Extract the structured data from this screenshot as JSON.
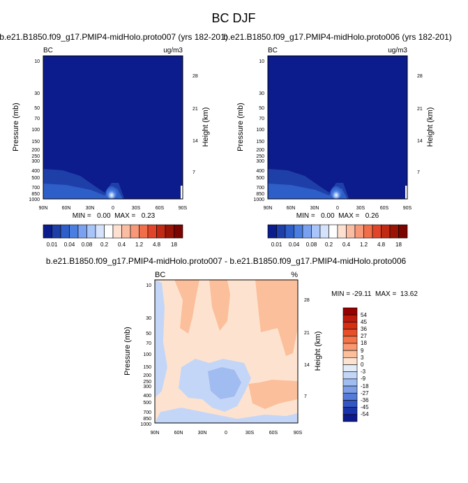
{
  "figure_title": "BC DJF",
  "chart_data": [
    {
      "type": "heatmap",
      "title": "b.e21.B1850.f09_g17.PMIP4-midHolo.proto007 (yrs 182-201)",
      "variable": "BC",
      "units": "ug/m3",
      "xlabel": "",
      "ylabel": "Pressure (mb)",
      "ylabel_right": "Height (km)",
      "x_ticks": [
        "90N",
        "60N",
        "30N",
        "0",
        "30S",
        "60S",
        "90S"
      ],
      "y_ticks": [
        "10",
        "30",
        "50",
        "70",
        "100",
        "150",
        "200",
        "250",
        "300",
        "400",
        "500",
        "700",
        "850",
        "1000"
      ],
      "y_right_ticks": [
        "28",
        "21",
        "14",
        "7"
      ],
      "stats": "MIN =   0.00  MAX =   0.23",
      "min": 0.0,
      "max": 0.23,
      "colorbar": [
        "0.01",
        "0.04",
        "0.08",
        "0.2",
        "0.4",
        "1.2",
        "4.8",
        "18"
      ]
    },
    {
      "type": "heatmap",
      "title": "b.e21.B1850.f09_g17.PMIP4-midHolo.proto006 (yrs 182-201)",
      "variable": "BC",
      "units": "ug/m3",
      "xlabel": "",
      "ylabel": "Pressure (mb)",
      "ylabel_right": "Height (km)",
      "x_ticks": [
        "90N",
        "60N",
        "30N",
        "0",
        "30S",
        "60S",
        "90S"
      ],
      "y_ticks": [
        "10",
        "30",
        "50",
        "70",
        "100",
        "150",
        "200",
        "250",
        "300",
        "400",
        "500",
        "700",
        "850",
        "1000"
      ],
      "y_right_ticks": [
        "28",
        "21",
        "14",
        "7"
      ],
      "stats": "MIN =   0.00  MAX =   0.26",
      "min": 0.0,
      "max": 0.26,
      "colorbar": [
        "0.01",
        "0.04",
        "0.08",
        "0.2",
        "0.4",
        "1.2",
        "4.8",
        "18"
      ]
    },
    {
      "type": "heatmap",
      "title": "b.e21.B1850.f09_g17.PMIP4-midHolo.proto007 - b.e21.B1850.f09_g17.PMIP4-midHolo.proto006",
      "variable": "BC",
      "units": "%",
      "xlabel": "",
      "ylabel": "Pressure (mb)",
      "ylabel_right": "Height (km)",
      "x_ticks": [
        "90N",
        "60N",
        "30N",
        "0",
        "30S",
        "60S",
        "90S"
      ],
      "y_ticks": [
        "10",
        "30",
        "50",
        "70",
        "100",
        "150",
        "200",
        "250",
        "300",
        "400",
        "500",
        "700",
        "850",
        "1000"
      ],
      "y_right_ticks": [
        "28",
        "21",
        "14",
        "7"
      ],
      "stats": "MIN = -29.11  MAX =  13.62",
      "min": -29.11,
      "max": 13.62,
      "colorbar": [
        "54",
        "45",
        "36",
        "27",
        "18",
        "9",
        "3",
        "0",
        "-3",
        "-9",
        "-18",
        "-27",
        "-36",
        "-45",
        "-54"
      ]
    }
  ],
  "colors": {
    "abs_scale": [
      "#0c1c8c",
      "#1f3fa8",
      "#2e5ec8",
      "#4a7ee0",
      "#7aa0f0",
      "#a8c4f8",
      "#d4e2fb",
      "#ffffff",
      "#fde0d0",
      "#fbbca4",
      "#f79878",
      "#f06e4a",
      "#e0452a",
      "#c02a14",
      "#9a1406",
      "#7a0400"
    ],
    "diff_scale": [
      "#960000",
      "#bb1a0c",
      "#d42f12",
      "#e5502a",
      "#f27448",
      "#f79870",
      "#fbbf9c",
      "#fde3cf",
      "#e2ecf9",
      "#c4d6f7",
      "#a0bcf0",
      "#7c9ee6",
      "#557ad8",
      "#3256c4",
      "#1a33aa",
      "#0c1a8a"
    ]
  }
}
